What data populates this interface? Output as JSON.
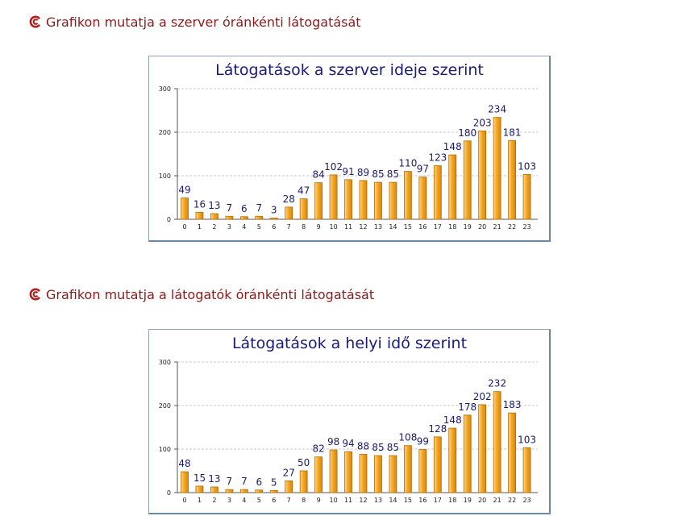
{
  "sections": [
    {
      "heading": "Grafikon mutatja a szerver óránkénti látogatását",
      "icon": "brand-logo-icon",
      "chart_data": {
        "type": "bar",
        "title": "Látogatások a szerver ideje szerint",
        "xlabel": "",
        "ylabel": "",
        "categories": [
          "0",
          "1",
          "2",
          "3",
          "4",
          "5",
          "6",
          "7",
          "8",
          "9",
          "10",
          "11",
          "12",
          "13",
          "14",
          "15",
          "16",
          "17",
          "18",
          "19",
          "20",
          "21",
          "22",
          "23"
        ],
        "values": [
          49,
          16,
          13,
          7,
          6,
          7,
          3,
          28,
          47,
          84,
          102,
          91,
          89,
          85,
          85,
          110,
          97,
          123,
          148,
          180,
          203,
          234,
          181,
          103
        ],
        "ylim": [
          0,
          300
        ],
        "yticks": [
          "0",
          "100",
          "200",
          "300"
        ],
        "grid": true,
        "legend": "none",
        "bar_color": "#f5a623"
      }
    },
    {
      "heading": "Grafikon mutatja a látogatók óránkénti látogatását",
      "icon": "brand-logo-icon",
      "chart_data": {
        "type": "bar",
        "title": "Látogatások a helyi idő szerint",
        "xlabel": "",
        "ylabel": "",
        "categories": [
          "0",
          "1",
          "2",
          "3",
          "4",
          "5",
          "6",
          "7",
          "8",
          "9",
          "10",
          "11",
          "12",
          "13",
          "14",
          "15",
          "16",
          "17",
          "18",
          "19",
          "20",
          "21",
          "22",
          "23"
        ],
        "values": [
          48,
          15,
          13,
          7,
          7,
          6,
          5,
          27,
          50,
          82,
          98,
          94,
          88,
          85,
          85,
          108,
          99,
          128,
          148,
          178,
          202,
          232,
          183,
          103
        ],
        "ylim": [
          0,
          300
        ],
        "yticks": [
          "0",
          "100",
          "200",
          "300"
        ],
        "grid": true,
        "legend": "none",
        "bar_color": "#f5a623"
      }
    }
  ]
}
